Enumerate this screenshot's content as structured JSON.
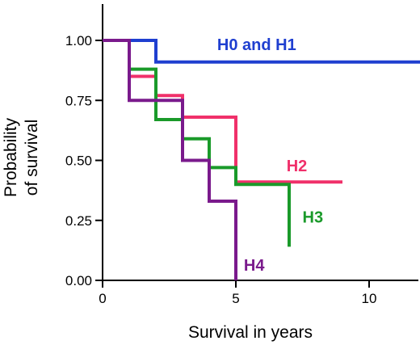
{
  "chart_data": {
    "type": "line",
    "step": true,
    "xlabel": "Survival in years",
    "ylabel": [
      "Probability",
      "of survival"
    ],
    "xlim": [
      0,
      12
    ],
    "ylim": [
      0,
      1.15
    ],
    "x_ticks": [
      0,
      5,
      10
    ],
    "y_ticks": [
      0,
      0.25,
      0.5,
      0.75,
      1.0
    ],
    "x_tick_labels": [
      "0",
      "5",
      "10"
    ],
    "y_tick_labels": [
      "0.00",
      "0.25",
      "0.50",
      "0.75",
      "1.00"
    ],
    "grid": false,
    "series": [
      {
        "name": "H0 and H1",
        "color": "#1f3fd0",
        "label_at": [
          4.3,
          0.96
        ],
        "points": [
          [
            0,
            1.0
          ],
          [
            2.0,
            1.0
          ],
          [
            2.0,
            0.91
          ],
          [
            12,
            0.91
          ]
        ]
      },
      {
        "name": "H2",
        "color": "#f0306a",
        "label_at": [
          6.9,
          0.455
        ],
        "points": [
          [
            0,
            1.0
          ],
          [
            1.0,
            1.0
          ],
          [
            1.0,
            0.85
          ],
          [
            2.0,
            0.85
          ],
          [
            2.0,
            0.77
          ],
          [
            3.0,
            0.77
          ],
          [
            3.0,
            0.68
          ],
          [
            5.0,
            0.68
          ],
          [
            5.0,
            0.41
          ],
          [
            9.0,
            0.41
          ]
        ]
      },
      {
        "name": "H3",
        "color": "#1a9a2a",
        "label_at": [
          7.5,
          0.24
        ],
        "points": [
          [
            0,
            1.0
          ],
          [
            1.0,
            1.0
          ],
          [
            1.0,
            0.88
          ],
          [
            2.0,
            0.88
          ],
          [
            2.0,
            0.67
          ],
          [
            3.0,
            0.67
          ],
          [
            3.0,
            0.59
          ],
          [
            4.0,
            0.59
          ],
          [
            4.0,
            0.47
          ],
          [
            5.0,
            0.47
          ],
          [
            5.0,
            0.4
          ],
          [
            7.0,
            0.4
          ],
          [
            7.0,
            0.14
          ]
        ]
      },
      {
        "name": "H4",
        "color": "#7a1a8c",
        "label_at": [
          5.3,
          0.04
        ],
        "points": [
          [
            0,
            1.0
          ],
          [
            1.0,
            1.0
          ],
          [
            1.0,
            0.75
          ],
          [
            2.0,
            0.75
          ],
          [
            2.0,
            0.75
          ],
          [
            3.0,
            0.75
          ],
          [
            3.0,
            0.5
          ],
          [
            4.0,
            0.5
          ],
          [
            4.0,
            0.33
          ],
          [
            5.0,
            0.33
          ],
          [
            5.0,
            0.0
          ]
        ]
      }
    ]
  }
}
